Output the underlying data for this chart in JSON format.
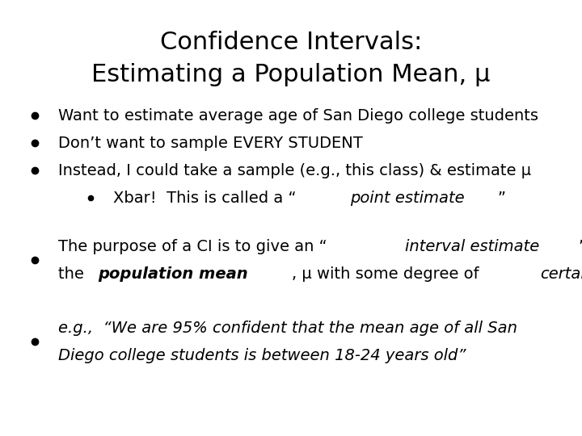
{
  "title_line1": "Confidence Intervals:",
  "title_line2": "Estimating a Population Mean, μ",
  "background_color": "#ffffff",
  "title_fontsize": 22,
  "body_fontsize": 14,
  "title_color": "#000000",
  "text_color": "#000000",
  "bullet1": "Want to estimate average age of San Diego college students",
  "bullet2": "Don’t want to sample EVERY STUDENT",
  "bullet3": "Instead, I could take a sample (e.g., this class) & estimate μ",
  "sub_bullet_pre": "Xbar!  This is called a “",
  "sub_bullet_italic": "point estimate",
  "sub_bullet_post": "”",
  "ci_pre": "The purpose of a CI is to give an “",
  "ci_italic": "interval estimate",
  "ci_post": "” of",
  "ci_line2_pre": "the ",
  "ci_bold_italic": "population mean",
  "ci_line2_mid": ", μ with some degree of ",
  "ci_line2_italic": "certainty",
  "eg_line1": "e.g.,  “We are 95% confident that the mean age of all San",
  "eg_line2": "Diego college students is between 18-24 years old”"
}
